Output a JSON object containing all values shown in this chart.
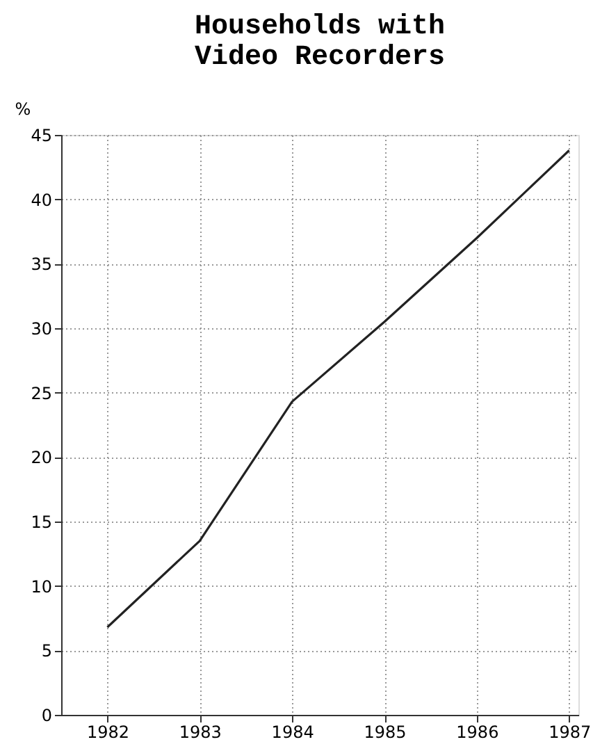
{
  "chart_data": {
    "type": "line",
    "title": "Households with Video Recorders",
    "ylabel": "%",
    "x": [
      1982,
      1983,
      1984,
      1985,
      1986,
      1987
    ],
    "series": [
      {
        "color": "#222222",
        "values": [
          6.8,
          13.5,
          24.3,
          30.5,
          37.0,
          43.8
        ]
      }
    ],
    "xlim": [
      1981.5,
      1987.1
    ],
    "xticks": [
      1982,
      1983,
      1984,
      1985,
      1986,
      1987
    ],
    "ylim": [
      0,
      45
    ],
    "yticks": [
      0,
      5,
      10,
      15,
      20,
      25,
      30,
      35,
      40,
      45
    ],
    "grid": true,
    "line_style": "solid"
  }
}
